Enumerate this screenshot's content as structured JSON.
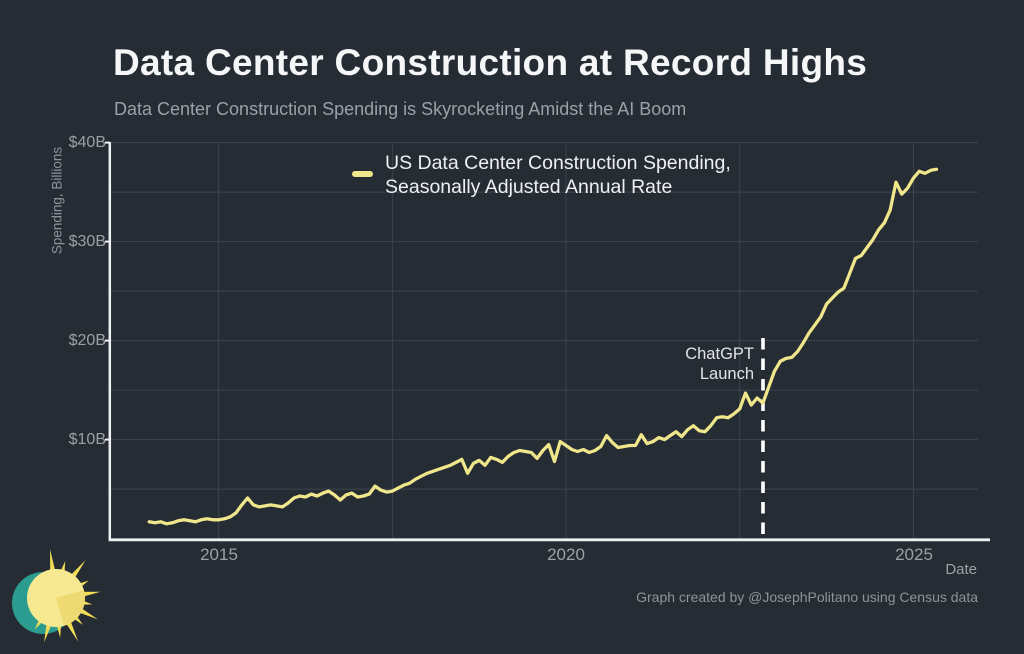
{
  "header": {
    "title": "Data Center Construction at Record Highs",
    "subtitle": "Data Center Construction Spending is Skyrocketing Amidst the AI Boom"
  },
  "legend": {
    "line1": "US Data Center Construction Spending,",
    "line2": "Seasonally Adjusted Annual Rate"
  },
  "annotation": {
    "line1": "ChatGPT",
    "line2": "Launch"
  },
  "axes": {
    "y_label": "Spending, Billions",
    "x_label": "Date",
    "y_ticks": [
      "$40B",
      "$30B",
      "$20B",
      "$10B"
    ],
    "x_ticks": [
      "2015",
      "2020",
      "2025"
    ]
  },
  "footer": {
    "credit": "Graph created by @JosephPolitano using Census data"
  },
  "colors": {
    "background": "#252c34",
    "line": "#f0e68c",
    "gridline": "#3d444d",
    "spine": "#eef0f1",
    "dashed_line": "#ffffff",
    "sun_ray": "#f1dc56",
    "sun_disc": "#f6e992",
    "sun_wedge": "#e8d05e",
    "sun_back_circle": "#2b9c8f"
  },
  "chart_data": {
    "type": "line",
    "title": "Data Center Construction at Record Highs",
    "subtitle": "Data Center Construction Spending is Skyrocketing Amidst the AI Boom",
    "xlabel": "Date",
    "ylabel": "Spending, Billions",
    "xlim": [
      2013.45,
      2025.93
    ],
    "ylim": [
      0,
      40
    ],
    "x_tick_values": [
      2015,
      2020,
      2025
    ],
    "y_tick_values": [
      40,
      30,
      20,
      10
    ],
    "x_gridlines": [
      2015,
      2017.5,
      2020,
      2022.5,
      2025
    ],
    "y_gridlines": [
      5,
      10,
      15,
      20,
      25,
      30,
      35,
      40
    ],
    "grid": true,
    "legend_position": "upper-center",
    "annotation_line_year": 2022.835,
    "series": [
      {
        "name": "US Data Center Construction Spending, Seasonally Adjusted Annual Rate",
        "units": "billions of USD",
        "frequency": "monthly",
        "start_year": 2014,
        "start_month": 1,
        "values": [
          1.7,
          1.6,
          1.7,
          1.5,
          1.6,
          1.8,
          1.9,
          1.8,
          1.7,
          1.9,
          2.0,
          1.9,
          1.9,
          2.0,
          2.2,
          2.6,
          3.4,
          4.1,
          3.4,
          3.2,
          3.3,
          3.4,
          3.3,
          3.2,
          3.6,
          4.1,
          4.3,
          4.2,
          4.5,
          4.3,
          4.6,
          4.8,
          4.4,
          3.9,
          4.4,
          4.6,
          4.2,
          4.3,
          4.5,
          5.3,
          4.9,
          4.7,
          4.8,
          5.1,
          5.4,
          5.6,
          6.0,
          6.3,
          6.6,
          6.8,
          7.0,
          7.2,
          7.4,
          7.7,
          8.0,
          6.6,
          7.6,
          7.9,
          7.4,
          8.2,
          8.0,
          7.7,
          8.3,
          8.7,
          8.9,
          8.8,
          8.7,
          8.1,
          8.9,
          9.5,
          7.8,
          9.8,
          9.4,
          9.0,
          8.8,
          9.0,
          8.7,
          8.9,
          9.3,
          10.4,
          9.7,
          9.2,
          9.3,
          9.4,
          9.4,
          10.5,
          9.6,
          9.8,
          10.2,
          10.0,
          10.4,
          10.8,
          10.3,
          11.0,
          11.4,
          10.9,
          10.8,
          11.4,
          12.2,
          12.3,
          12.2,
          12.6,
          13.1,
          14.7,
          13.5,
          14.2,
          13.7,
          15.3,
          16.9,
          17.9,
          18.2,
          18.3,
          18.9,
          19.8,
          20.8,
          21.6,
          22.4,
          23.7,
          24.3,
          24.9,
          25.3,
          26.8,
          28.3,
          28.6,
          29.4,
          30.2,
          31.2,
          31.9,
          33.2,
          36.0,
          34.8,
          35.4,
          36.4,
          37.1,
          36.9,
          37.2,
          37.3
        ]
      }
    ]
  }
}
